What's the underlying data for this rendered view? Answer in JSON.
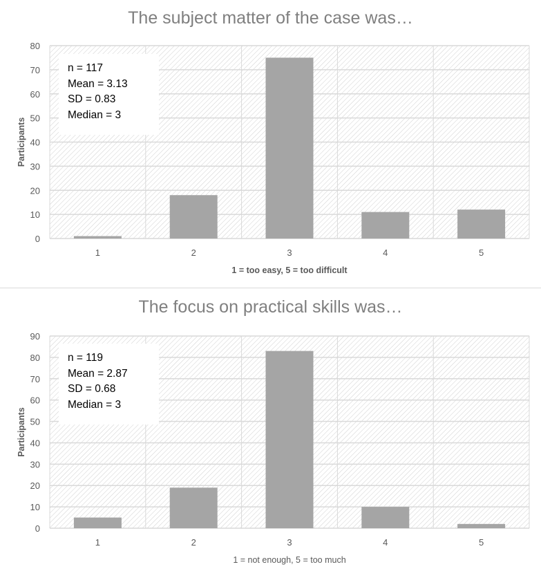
{
  "colors": {
    "bar": "#a5a5a5",
    "grid": "#d9d9d9",
    "hatch": "#d0d0d0",
    "title": "#7f7f7f",
    "axis_text": "#595959"
  },
  "chart_data": [
    {
      "type": "bar",
      "title": "The subject matter of the case was…",
      "xlabel": "1 = too easy, 5 = too difficult",
      "xlabel_bold": true,
      "ylabel": "Participants",
      "categories": [
        "1",
        "2",
        "3",
        "4",
        "5"
      ],
      "values": [
        1,
        18,
        75,
        11,
        12
      ],
      "ylim": [
        0,
        80
      ],
      "yticks": [
        "0",
        "10",
        "20",
        "30",
        "40",
        "50",
        "60",
        "70",
        "80"
      ],
      "grid": true,
      "stats": [
        "n = 117",
        "Mean = 3.13",
        "SD = 0.83",
        "Median = 3"
      ]
    },
    {
      "type": "bar",
      "title": "The focus on practical skills was…",
      "xlabel": "1 = not enough, 5 = too much",
      "xlabel_bold": false,
      "ylabel": "Participants",
      "categories": [
        "1",
        "2",
        "3",
        "4",
        "5"
      ],
      "values": [
        5,
        19,
        83,
        10,
        2
      ],
      "ylim": [
        0,
        90
      ],
      "yticks": [
        "0",
        "10",
        "20",
        "30",
        "40",
        "50",
        "60",
        "70",
        "80",
        "90"
      ],
      "grid": true,
      "stats": [
        "n = 119",
        "Mean = 2.87",
        "SD = 0.68",
        "Median = 3"
      ]
    }
  ]
}
